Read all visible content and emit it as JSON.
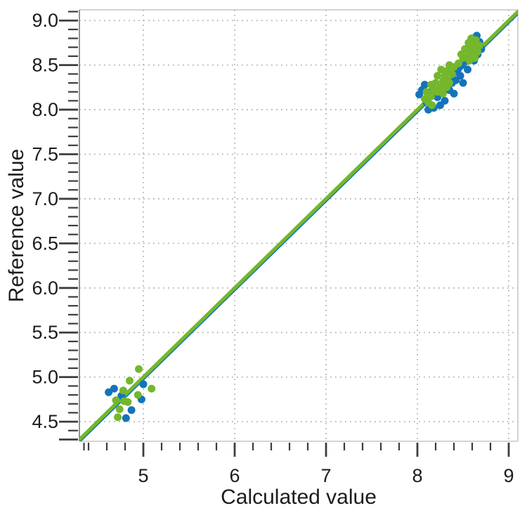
{
  "chart_data": {
    "type": "scatter",
    "title": "",
    "xlabel": "Calculated value",
    "ylabel": "Reference value",
    "xlim": [
      4.3,
      9.1
    ],
    "ylim": [
      4.28,
      9.12
    ],
    "grid": "dotted gridlines at labeled major ticks only",
    "legend": "none",
    "x_major_ticks": [
      5,
      6,
      7,
      8,
      9
    ],
    "x_tick_labels": [
      "5",
      "6",
      "7",
      "8",
      "9"
    ],
    "x_minor_ticks": [
      4.35,
      4.4,
      4.6,
      4.8,
      5.2,
      5.4,
      5.6,
      5.8,
      6.2,
      6.4,
      6.6,
      6.8,
      7.2,
      7.4,
      7.6,
      7.8,
      8.2,
      8.4,
      8.6,
      8.8
    ],
    "y_major_ticks": [
      4.5,
      5.0,
      5.5,
      6.0,
      6.5,
      7.0,
      7.5,
      8.0,
      8.5,
      9.0
    ],
    "y_tick_labels": [
      "4.5",
      "5.0",
      "5.5",
      "6.0",
      "6.5",
      "7.0",
      "7.5",
      "8.0",
      "8.5",
      "9.0"
    ],
    "y_minor_ticks": [
      4.4,
      4.6,
      4.7,
      4.8,
      4.9,
      5.1,
      5.2,
      5.3,
      5.4,
      5.6,
      5.7,
      5.8,
      5.9,
      6.1,
      6.2,
      6.3,
      6.4,
      6.6,
      6.7,
      6.8,
      6.9,
      7.1,
      7.2,
      7.3,
      7.4,
      7.6,
      7.7,
      7.8,
      7.9,
      8.1,
      8.2,
      8.3,
      8.4,
      8.6,
      8.7,
      8.8,
      8.9,
      9.1
    ],
    "y_edge_tick": 4.3,
    "marker": "circle",
    "marker_radius_px": 5.5,
    "colors": {
      "blue": "#1374BA",
      "green": "#74B72C",
      "tick": "#3d3d3d",
      "grid": "#b5b5b5",
      "spine_light": "#c6c6c6",
      "spine_dark": "#6e6e6e",
      "text": "#1c1c1c"
    },
    "lines": [
      {
        "name": "blue-identity-fit-line",
        "color": "#1374BA",
        "x1": 4.3,
        "y1": 4.284,
        "x2": 9.1,
        "y2": 9.084,
        "width": 5
      },
      {
        "name": "green-identity-fit-line",
        "color": "#74B72C",
        "x1": 4.3,
        "y1": 4.3,
        "x2": 9.1,
        "y2": 9.1,
        "width": 5
      }
    ],
    "series": [
      {
        "name": "blue",
        "color": "#1374BA",
        "points": [
          [
            4.68,
            4.87
          ],
          [
            4.62,
            4.83
          ],
          [
            5.0,
            4.92
          ],
          [
            4.98,
            4.75
          ],
          [
            4.76,
            4.79
          ],
          [
            4.87,
            4.63
          ],
          [
            4.81,
            4.54
          ],
          [
            8.12,
            8.0
          ],
          [
            8.18,
            8.02
          ],
          [
            8.25,
            8.05
          ],
          [
            8.1,
            8.08
          ],
          [
            8.3,
            8.1
          ],
          [
            8.22,
            8.14
          ],
          [
            8.02,
            8.17
          ],
          [
            8.05,
            8.22
          ],
          [
            8.08,
            8.28
          ],
          [
            8.15,
            8.2
          ],
          [
            8.35,
            8.22
          ],
          [
            8.4,
            8.18
          ],
          [
            8.38,
            8.3
          ],
          [
            8.42,
            8.33
          ],
          [
            8.47,
            8.38
          ],
          [
            8.44,
            8.44
          ],
          [
            8.5,
            8.3
          ],
          [
            8.48,
            8.5
          ],
          [
            8.55,
            8.45
          ],
          [
            8.52,
            8.55
          ],
          [
            8.62,
            8.55
          ],
          [
            8.66,
            8.62
          ],
          [
            8.7,
            8.68
          ],
          [
            8.57,
            8.72
          ],
          [
            8.6,
            8.8
          ],
          [
            8.65,
            8.83
          ],
          [
            8.68,
            8.76
          ]
        ]
      },
      {
        "name": "green",
        "color": "#74B72C",
        "points": [
          [
            4.95,
            5.09
          ],
          [
            4.85,
            4.96
          ],
          [
            4.78,
            4.85
          ],
          [
            5.09,
            4.87
          ],
          [
            4.94,
            4.8
          ],
          [
            4.83,
            4.72
          ],
          [
            4.7,
            4.74
          ],
          [
            4.79,
            4.73
          ],
          [
            4.74,
            4.64
          ],
          [
            4.72,
            4.55
          ],
          [
            8.16,
            8.05
          ],
          [
            8.08,
            8.12
          ],
          [
            8.12,
            8.08
          ],
          [
            8.15,
            8.15
          ],
          [
            8.1,
            8.2
          ],
          [
            8.18,
            8.22
          ],
          [
            8.15,
            8.28
          ],
          [
            8.22,
            8.2
          ],
          [
            8.2,
            8.3
          ],
          [
            8.25,
            8.25
          ],
          [
            8.28,
            8.32
          ],
          [
            8.22,
            8.38
          ],
          [
            8.3,
            8.38
          ],
          [
            8.26,
            8.45
          ],
          [
            8.33,
            8.44
          ],
          [
            8.35,
            8.3
          ],
          [
            8.32,
            8.25
          ],
          [
            8.38,
            8.4
          ],
          [
            8.35,
            8.5
          ],
          [
            8.4,
            8.48
          ],
          [
            8.28,
            8.18
          ],
          [
            8.45,
            8.52
          ],
          [
            8.5,
            8.58
          ],
          [
            8.48,
            8.62
          ],
          [
            8.55,
            8.6
          ],
          [
            8.52,
            8.68
          ],
          [
            8.58,
            8.65
          ],
          [
            8.6,
            8.7
          ],
          [
            8.56,
            8.75
          ],
          [
            8.62,
            8.74
          ],
          [
            8.65,
            8.7
          ],
          [
            8.6,
            8.62
          ],
          [
            8.66,
            8.65
          ],
          [
            8.63,
            8.58
          ],
          [
            8.57,
            8.55
          ],
          [
            8.68,
            8.72
          ],
          [
            8.64,
            8.78
          ],
          [
            8.59,
            8.8
          ]
        ]
      }
    ]
  }
}
